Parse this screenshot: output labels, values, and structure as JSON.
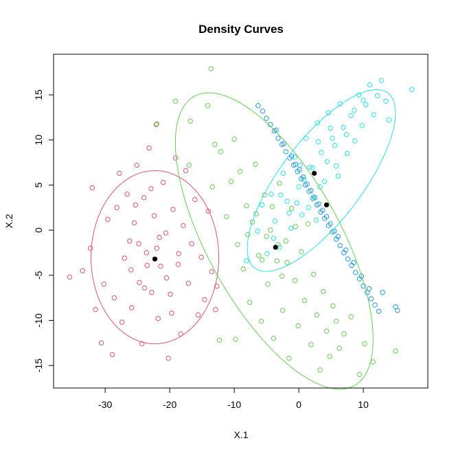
{
  "chart_data": {
    "type": "scatter",
    "title": "Density Curves",
    "xlabel": "X.1",
    "ylabel": "X.2",
    "xlim": [
      -38,
      20
    ],
    "ylim": [
      -17.5,
      19.5
    ],
    "xticks": [
      -30,
      -20,
      -10,
      0,
      10
    ],
    "yticks": [
      -15,
      -10,
      -5,
      0,
      5,
      10,
      15
    ],
    "grid": false,
    "legend": "none",
    "clusters": [
      {
        "color": "#DF536B",
        "center": [
          -22.3,
          -3.2
        ],
        "ellipse": {
          "center": [
            -22.3,
            -3.0
          ],
          "semi_axes": [
            9.6,
            9.9
          ],
          "angle_deg": 90
        },
        "points": [
          [
            -35.5,
            -5.2
          ],
          [
            -33.5,
            -4.5
          ],
          [
            -32.3,
            -2.0
          ],
          [
            -32.0,
            4.7
          ],
          [
            -31.5,
            -8.8
          ],
          [
            -30.6,
            -12.5
          ],
          [
            -30.2,
            -6.0
          ],
          [
            -29.6,
            1.2
          ],
          [
            -28.9,
            -13.8
          ],
          [
            -28.6,
            -7.5
          ],
          [
            -28.2,
            2.5
          ],
          [
            -27.8,
            6.3
          ],
          [
            -27.4,
            -10.2
          ],
          [
            -27.0,
            -3.1
          ],
          [
            -26.6,
            4.0
          ],
          [
            -26.2,
            -1.2
          ],
          [
            -25.9,
            -8.6
          ],
          [
            -25.5,
            0.8
          ],
          [
            -25.1,
            7.2
          ],
          [
            -24.7,
            -5.8
          ],
          [
            -24.3,
            -12.6
          ],
          [
            -24.0,
            3.6
          ],
          [
            -23.6,
            -2.5
          ],
          [
            -23.2,
            9.1
          ],
          [
            -22.8,
            -6.9
          ],
          [
            -22.4,
            1.6
          ],
          [
            -22.1,
            11.7
          ],
          [
            -21.8,
            -9.8
          ],
          [
            -21.4,
            -4.0
          ],
          [
            -21.0,
            5.3
          ],
          [
            -20.6,
            -0.3
          ],
          [
            -20.2,
            -14.2
          ],
          [
            -19.9,
            -7.1
          ],
          [
            -19.5,
            2.3
          ],
          [
            -19.1,
            8.0
          ],
          [
            -18.7,
            -3.8
          ],
          [
            -18.3,
            -11.5
          ],
          [
            -17.9,
            0.5
          ],
          [
            -17.5,
            6.6
          ],
          [
            -17.1,
            -5.9
          ],
          [
            -16.6,
            -1.5
          ],
          [
            -16.1,
            3.4
          ],
          [
            -15.6,
            -9.4
          ],
          [
            -15.1,
            -3.0
          ],
          [
            -14.6,
            -7.7
          ],
          [
            -14.0,
            2.1
          ],
          [
            -13.5,
            -4.6
          ],
          [
            -12.9,
            -8.8
          ],
          [
            -12.7,
            -6.2
          ],
          [
            -23.5,
            -3.9
          ],
          [
            -22.0,
            -2.0
          ],
          [
            -24.8,
            -1.5
          ],
          [
            -20.5,
            -5.3
          ],
          [
            -26.0,
            -4.4
          ],
          [
            -18.6,
            -2.6
          ],
          [
            -21.6,
            -0.8
          ],
          [
            -23.9,
            -6.4
          ],
          [
            -25.3,
            2.8
          ],
          [
            -19.7,
            -9.2
          ],
          [
            -22.9,
            4.6
          ]
        ]
      },
      {
        "color": "#61D04F",
        "center": [
          -3.6,
          -1.9
        ],
        "ellipse": {
          "center": [
            -3.8,
            -1.2
          ],
          "semi_axes": [
            20.5,
            9.2
          ],
          "angle_deg": -48
        },
        "points": [
          [
            -22.0,
            11.8
          ],
          [
            -19.1,
            14.3
          ],
          [
            -16.8,
            12.1
          ],
          [
            -14.1,
            13.8
          ],
          [
            -13.0,
            9.5
          ],
          [
            -17.0,
            7.2
          ],
          [
            -13.4,
            4.8
          ],
          [
            -12.1,
            8.7
          ],
          [
            -11.2,
            1.5
          ],
          [
            -10.5,
            5.4
          ],
          [
            -10.0,
            10.1
          ],
          [
            -9.5,
            -1.6
          ],
          [
            -9.1,
            6.5
          ],
          [
            -8.6,
            -4.3
          ],
          [
            -8.1,
            2.7
          ],
          [
            -7.6,
            -8.0
          ],
          [
            -7.2,
            0.9
          ],
          [
            -6.7,
            7.3
          ],
          [
            -6.2,
            -2.8
          ],
          [
            -5.8,
            -10.1
          ],
          [
            -5.3,
            3.9
          ],
          [
            -4.8,
            -6.0
          ],
          [
            -4.4,
            0.0
          ],
          [
            -3.9,
            -12.0
          ],
          [
            -3.4,
            -3.4
          ],
          [
            -3.0,
            5.2
          ],
          [
            -2.5,
            -8.9
          ],
          [
            -2.0,
            -1.2
          ],
          [
            -1.5,
            -14.2
          ],
          [
            -1.1,
            2.4
          ],
          [
            -0.6,
            -5.6
          ],
          [
            -0.1,
            -10.6
          ],
          [
            0.4,
            -2.4
          ],
          [
            0.9,
            -7.8
          ],
          [
            1.4,
            0.7
          ],
          [
            1.9,
            -12.7
          ],
          [
            2.3,
            -4.9
          ],
          [
            2.8,
            -9.4
          ],
          [
            3.3,
            -15.5
          ],
          [
            3.8,
            -6.8
          ],
          [
            4.3,
            -11.2
          ],
          [
            4.8,
            -14.0
          ],
          [
            5.3,
            -8.4
          ],
          [
            5.8,
            -10.1
          ],
          [
            6.3,
            -13.1
          ],
          [
            7.0,
            -11.5
          ],
          [
            8.1,
            -9.6
          ],
          [
            9.4,
            -16.0
          ],
          [
            10.2,
            -12.6
          ],
          [
            -13.6,
            17.9
          ],
          [
            -12.3,
            -12.2
          ],
          [
            -5.0,
            -0.7
          ],
          [
            -3.2,
            -1.6
          ],
          [
            -6.6,
            1.8
          ],
          [
            -1.8,
            -3.6
          ],
          [
            -7.9,
            -0.5
          ],
          [
            -4.1,
            2.6
          ],
          [
            -2.6,
            -5.1
          ],
          [
            -0.5,
            0.4
          ],
          [
            -5.7,
            -3.3
          ],
          [
            11.5,
            -14.6
          ],
          [
            15.0,
            -13.4
          ],
          [
            -9.8,
            -12.1
          ]
        ]
      },
      {
        "color": "#28E2E5",
        "center": [
          2.4,
          6.3
        ],
        "ellipse": {
          "center": [
            3.5,
            5.5
          ],
          "semi_axes": [
            14.3,
            5.4
          ],
          "angle_deg": 40
        },
        "points": [
          [
            -8.1,
            -3.4
          ],
          [
            -6.4,
            -0.1
          ],
          [
            -5.7,
            2.8
          ],
          [
            -4.9,
            -2.6
          ],
          [
            -4.3,
            4.0
          ],
          [
            -3.7,
            1.0
          ],
          [
            -3.0,
            -1.9
          ],
          [
            -2.4,
            6.3
          ],
          [
            -1.8,
            3.2
          ],
          [
            -1.2,
            0.2
          ],
          [
            -0.6,
            8.1
          ],
          [
            0.0,
            4.8
          ],
          [
            0.5,
            1.7
          ],
          [
            1.1,
            10.2
          ],
          [
            1.7,
            7.0
          ],
          [
            2.3,
            3.7
          ],
          [
            2.9,
            11.9
          ],
          [
            3.5,
            8.6
          ],
          [
            4.0,
            5.4
          ],
          [
            4.6,
            13.0
          ],
          [
            5.2,
            10.2
          ],
          [
            5.8,
            7.1
          ],
          [
            6.4,
            14.0
          ],
          [
            6.9,
            11.4
          ],
          [
            7.5,
            8.5
          ],
          [
            8.1,
            12.7
          ],
          [
            8.7,
            9.9
          ],
          [
            9.3,
            15.0
          ],
          [
            9.8,
            11.6
          ],
          [
            10.4,
            13.9
          ],
          [
            11.0,
            16.1
          ],
          [
            11.6,
            12.8
          ],
          [
            12.2,
            14.9
          ],
          [
            12.8,
            16.6
          ],
          [
            13.5,
            14.3
          ],
          [
            14.0,
            12.2
          ],
          [
            17.5,
            15.6
          ],
          [
            0.8,
            5.6
          ],
          [
            2.1,
            6.9
          ],
          [
            3.3,
            4.8
          ],
          [
            -0.3,
            3.0
          ],
          [
            4.4,
            7.6
          ],
          [
            1.5,
            2.5
          ],
          [
            5.6,
            9.4
          ],
          [
            -1.5,
            1.9
          ],
          [
            6.1,
            6.0
          ],
          [
            3.0,
            9.8
          ],
          [
            7.4,
            10.6
          ],
          [
            -2.8,
            3.9
          ],
          [
            8.6,
            13.3
          ],
          [
            0.2,
            7.2
          ],
          [
            2.7,
            1.1
          ],
          [
            10.0,
            14.4
          ],
          [
            -3.9,
            -0.9
          ],
          [
            4.9,
            11.3
          ]
        ]
      },
      {
        "color": "#2297E6",
        "center": [
          4.3,
          2.8
        ],
        "ellipse": null,
        "points": [
          [
            -6.3,
            13.8
          ],
          [
            -5.6,
            13.2
          ],
          [
            -5.0,
            12.4
          ],
          [
            -4.4,
            11.7
          ],
          [
            -3.8,
            11.0
          ],
          [
            -3.2,
            10.2
          ],
          [
            -2.6,
            9.5
          ],
          [
            -2.0,
            8.7
          ],
          [
            -1.4,
            8.0
          ],
          [
            -0.8,
            7.2
          ],
          [
            -0.2,
            6.5
          ],
          [
            0.4,
            5.7
          ],
          [
            1.0,
            5.0
          ],
          [
            1.6,
            4.3
          ],
          [
            2.2,
            3.5
          ],
          [
            2.8,
            2.8
          ],
          [
            3.4,
            2.0
          ],
          [
            4.0,
            1.3
          ],
          [
            4.6,
            0.5
          ],
          [
            5.2,
            -0.2
          ],
          [
            5.8,
            -1.0
          ],
          [
            6.4,
            -1.7
          ],
          [
            7.0,
            -2.5
          ],
          [
            7.6,
            -3.2
          ],
          [
            8.2,
            -3.9
          ],
          [
            8.8,
            -4.7
          ],
          [
            9.4,
            -5.4
          ],
          [
            10.0,
            -6.2
          ],
          [
            10.6,
            -6.9
          ],
          [
            11.2,
            -7.6
          ],
          [
            11.8,
            -8.3
          ],
          [
            12.4,
            -9.0
          ],
          [
            13.0,
            -6.9
          ],
          [
            15.0,
            -8.5
          ],
          [
            15.3,
            -8.9
          ],
          [
            -3.5,
            11.1
          ],
          [
            -2.3,
            9.6
          ],
          [
            -1.1,
            8.2
          ],
          [
            0.1,
            6.7
          ],
          [
            1.3,
            5.1
          ],
          [
            2.5,
            3.6
          ],
          [
            3.7,
            2.2
          ],
          [
            4.9,
            0.7
          ],
          [
            6.1,
            -0.7
          ],
          [
            7.3,
            -2.2
          ],
          [
            8.5,
            -3.6
          ],
          [
            9.7,
            -5.1
          ],
          [
            10.9,
            -6.5
          ],
          [
            -0.5,
            7.3
          ],
          [
            0.7,
            5.9
          ],
          [
            1.9,
            4.4
          ],
          [
            3.1,
            2.9
          ],
          [
            4.3,
            1.5
          ],
          [
            5.5,
            -0.1
          ]
        ]
      }
    ]
  }
}
